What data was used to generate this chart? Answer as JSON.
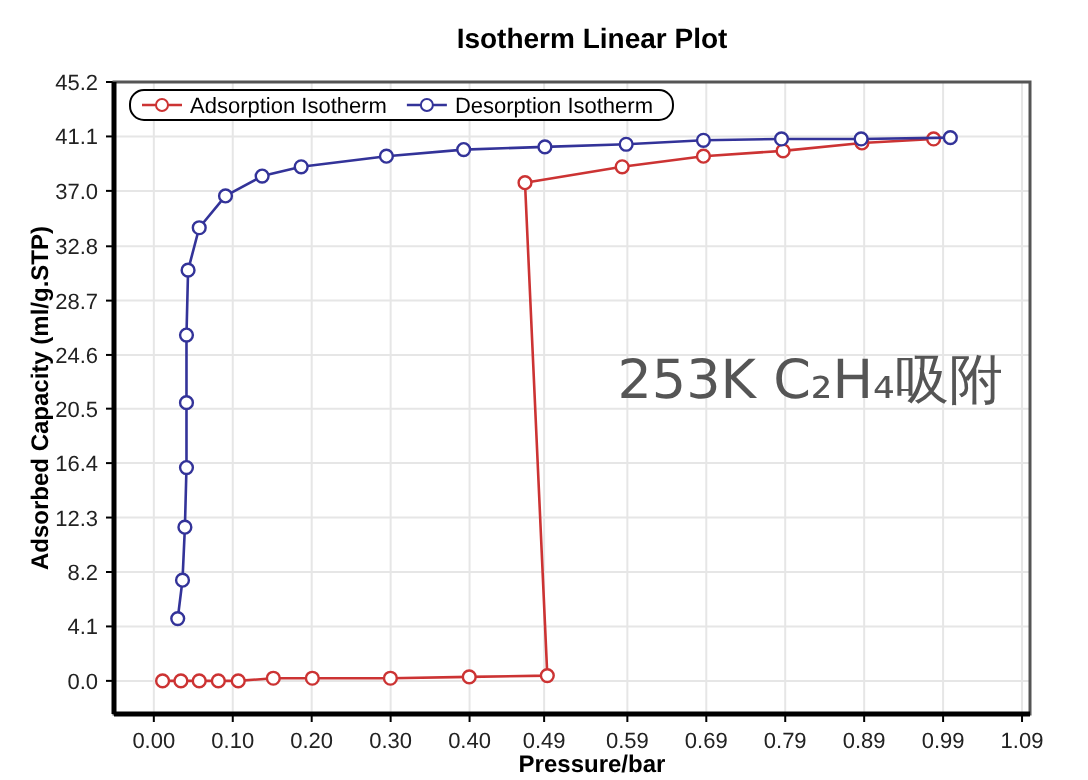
{
  "chart_data": {
    "type": "line",
    "title": "Isotherm Linear Plot",
    "xlabel": "Pressure/bar",
    "ylabel": "Adsorbed Capacity (ml/g.STP)",
    "xlim": [
      -0.05,
      1.1
    ],
    "ylim": [
      -2.5,
      45.2
    ],
    "xticks": [
      {
        "value": 0,
        "label": "0.00"
      },
      {
        "value": 0.0991,
        "label": "0.10"
      },
      {
        "value": 0.1982,
        "label": "0.20"
      },
      {
        "value": 0.2973,
        "label": "0.30"
      },
      {
        "value": 0.3964,
        "label": "0.40"
      },
      {
        "value": 0.49,
        "label": "0.49"
      },
      {
        "value": 0.5945,
        "label": "0.59"
      },
      {
        "value": 0.6936,
        "label": "0.69"
      },
      {
        "value": 0.7927,
        "label": "0.79"
      },
      {
        "value": 0.8918,
        "label": "0.89"
      },
      {
        "value": 0.9909,
        "label": "0.99"
      },
      {
        "value": 1.09,
        "label": "1.09"
      }
    ],
    "yticks": [
      {
        "value": 0,
        "label": "0.0"
      },
      {
        "value": 4.109,
        "label": "4.1"
      },
      {
        "value": 8.218,
        "label": "8.2"
      },
      {
        "value": 12.327,
        "label": "12.3"
      },
      {
        "value": 16.436,
        "label": "16.4"
      },
      {
        "value": 20.545,
        "label": "20.5"
      },
      {
        "value": 24.6,
        "label": "24.6"
      },
      {
        "value": 28.7,
        "label": "28.7"
      },
      {
        "value": 32.8,
        "label": "32.8"
      },
      {
        "value": 36.982,
        "label": "37.0"
      },
      {
        "value": 41.091,
        "label": "41.1"
      },
      {
        "value": 45.2,
        "label": "45.2"
      }
    ],
    "grid": true,
    "legend": "top left",
    "marker": "circle",
    "line_style": "solid",
    "annotations": [
      "253K C₂H₄吸附"
    ],
    "series": [
      {
        "name": "Adsorption Isotherm",
        "color": "#cc3333",
        "x": [
          0.011,
          0.034,
          0.057,
          0.081,
          0.106,
          0.15,
          0.199,
          0.297,
          0.396,
          0.494,
          0.466,
          0.588,
          0.69,
          0.79,
          0.889,
          0.979
        ],
        "values": [
          0,
          0,
          0,
          0,
          0,
          0.2,
          0.2,
          0.2,
          0.3,
          0.4,
          37.6,
          38.8,
          39.6,
          40.0,
          40.6,
          40.9
        ]
      },
      {
        "name": "Desorption Isotherm",
        "color": "#333399",
        "x": [
          1.0,
          0.888,
          0.788,
          0.69,
          0.593,
          0.491,
          0.389,
          0.292,
          0.185,
          0.136,
          0.09,
          0.057,
          0.043,
          0.041,
          0.041,
          0.041,
          0.039,
          0.036,
          0.03
        ],
        "values": [
          41.0,
          40.9,
          40.9,
          40.8,
          40.5,
          40.3,
          40.1,
          39.6,
          38.8,
          38.1,
          36.6,
          34.2,
          31.0,
          26.1,
          21.0,
          16.1,
          11.6,
          7.6,
          4.7
        ]
      }
    ]
  }
}
